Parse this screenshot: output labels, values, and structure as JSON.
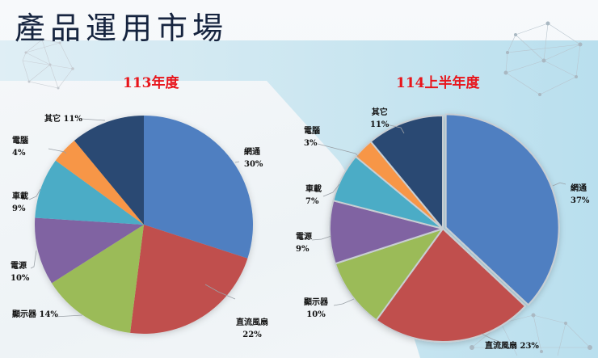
{
  "page": {
    "title": "產品運用市場"
  },
  "chart_data": [
    {
      "type": "pie",
      "title": "113年度",
      "categories": [
        "網通",
        "直流風扇",
        "顯示器",
        "電源",
        "車載",
        "電腦",
        "其它"
      ],
      "values": [
        30,
        22,
        14,
        10,
        9,
        4,
        11
      ],
      "colors": [
        "#4f7fc1",
        "#c0504d",
        "#9bbb59",
        "#8064a2",
        "#4bacc6",
        "#f79646",
        "#2c4a73"
      ],
      "labels": [
        "網通 30%",
        "直流風扇 22%",
        "顯示器 14%",
        "電源 10%",
        "車載 9%",
        "電腦 4%",
        "其它 11%"
      ],
      "start_angle": "12 o'clock, clockwise",
      "legend": "none (data labels with leader lines)"
    },
    {
      "type": "pie",
      "title": "114上半年度",
      "categories": [
        "網通",
        "直流風扇",
        "顯示器",
        "電源",
        "車載",
        "電腦",
        "其它"
      ],
      "values": [
        37,
        23,
        10,
        9,
        7,
        3,
        11
      ],
      "colors": [
        "#4f7fc1",
        "#c0504d",
        "#9bbb59",
        "#8064a2",
        "#4bacc6",
        "#f79646",
        "#2c4a73"
      ],
      "labels": [
        "網通 37%",
        "直流風扇 23%",
        "顯示器 10%",
        "電源 9%",
        "車載 7%",
        "電腦 3%",
        "其它 11%"
      ],
      "start_angle": "12 o'clock, clockwise",
      "legend": "none (data labels with leader lines)"
    }
  ],
  "labels_113": {
    "network": {
      "name": "網通",
      "pct": "30%"
    },
    "fan": {
      "name": "直流風扇",
      "pct": "22%"
    },
    "display": {
      "name": "顯示器 14%"
    },
    "power": {
      "name": "電源",
      "pct": "10%"
    },
    "auto": {
      "name": "車載",
      "pct": "9%"
    },
    "pc": {
      "name": "電腦",
      "pct": "4%"
    },
    "other": {
      "name": "其它 11%"
    }
  },
  "labels_114": {
    "network": {
      "name": "網通",
      "pct": "37%"
    },
    "fan": {
      "name": "直流風扇 23%"
    },
    "display": {
      "name": "顯示器",
      "pct": "10%"
    },
    "power": {
      "name": "電源",
      "pct": "9%"
    },
    "auto": {
      "name": "車載",
      "pct": "7%"
    },
    "pc": {
      "name": "電腦",
      "pct": "3%"
    },
    "other": {
      "name": "其它",
      "pct": "11%"
    }
  }
}
